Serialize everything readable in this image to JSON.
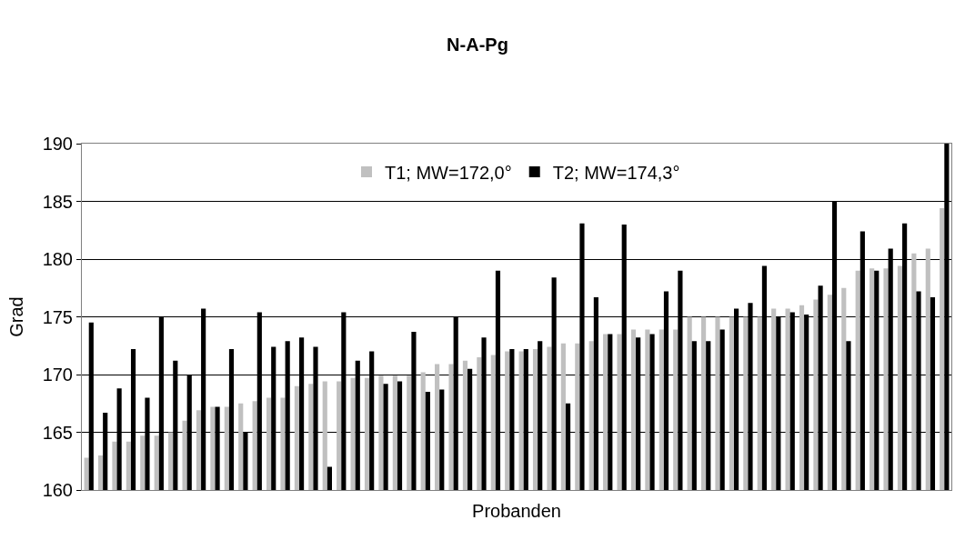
{
  "chart_data": {
    "type": "bar",
    "title": "N-A-Pg",
    "xlabel": "Probanden",
    "ylabel": "Grad",
    "categories": [
      null,
      null,
      null,
      null,
      null,
      null,
      null,
      null,
      null,
      null,
      null,
      null,
      null,
      null,
      null,
      null,
      null,
      null,
      null,
      null,
      null,
      null,
      null,
      null,
      null,
      null,
      null,
      null,
      null,
      null,
      null,
      null,
      null,
      null,
      null,
      null,
      null,
      null,
      null,
      null,
      null,
      null,
      null,
      null,
      null,
      null,
      null,
      null,
      null,
      null,
      null,
      null,
      null,
      null,
      null,
      null,
      null,
      null,
      null,
      null,
      null,
      null
    ],
    "series": [
      {
        "name": "T1; MW=172,0°",
        "color": "#c0c0c0",
        "values": [
          162.8,
          163.0,
          164.2,
          164.2,
          164.7,
          164.7,
          165.0,
          166.0,
          166.9,
          167.2,
          167.2,
          167.5,
          167.7,
          168.0,
          168.0,
          169.0,
          169.2,
          169.4,
          169.4,
          169.7,
          169.7,
          169.9,
          169.9,
          169.9,
          170.2,
          170.9,
          170.9,
          171.2,
          171.5,
          171.7,
          172.0,
          172.0,
          172.2,
          172.4,
          172.7,
          172.7,
          172.9,
          173.5,
          173.5,
          173.9,
          173.9,
          173.9,
          173.9,
          175.0,
          175.0,
          175.0,
          175.0,
          175.0,
          175.0,
          175.7,
          175.7,
          176.0,
          176.5,
          176.9,
          177.5,
          179.0,
          179.2,
          179.2,
          179.4,
          180.5,
          180.9,
          184.4
        ]
      },
      {
        "name": "T2; MW=174,3°",
        "color": "#000000",
        "values": [
          174.5,
          166.7,
          168.8,
          172.2,
          168.0,
          175.0,
          171.2,
          170.0,
          175.7,
          167.2,
          172.2,
          165.0,
          175.4,
          172.4,
          172.9,
          173.2,
          172.4,
          162.0,
          175.4,
          171.2,
          172.0,
          169.2,
          169.4,
          173.7,
          168.5,
          168.7,
          175.0,
          170.5,
          173.2,
          179.0,
          172.2,
          172.2,
          172.9,
          178.4,
          167.5,
          183.1,
          176.7,
          173.5,
          183.0,
          173.2,
          173.5,
          177.2,
          179.0,
          172.9,
          172.9,
          173.9,
          175.7,
          176.2,
          179.4,
          175.0,
          175.4,
          175.2,
          177.7,
          185.0,
          172.9,
          182.4,
          179.0,
          180.9,
          183.1,
          177.2,
          176.7,
          190.0
        ]
      }
    ],
    "ylim": [
      160,
      190
    ],
    "yticks": [
      160,
      165,
      170,
      175,
      180,
      185,
      190
    ],
    "grid": "y",
    "legend": "top",
    "tick_labels": "y"
  }
}
